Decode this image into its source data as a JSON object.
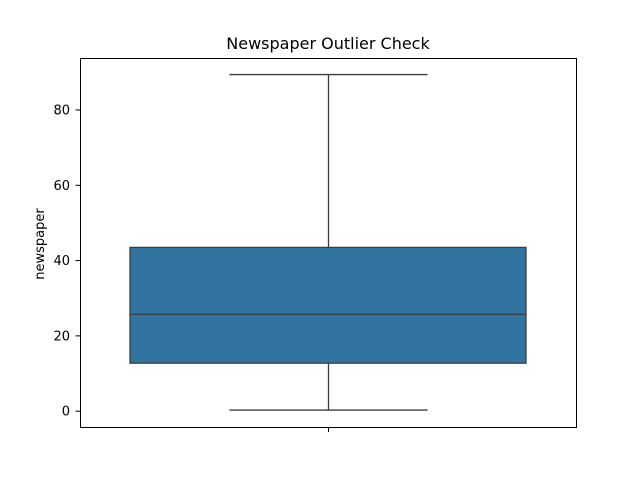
{
  "chart_data": {
    "type": "box",
    "title": "Newspaper Outlier Check",
    "xlabel": "",
    "ylabel": "newspaper",
    "ylim": [
      -4.2,
      93.8
    ],
    "yticks": [
      0,
      20,
      40,
      60,
      80
    ],
    "grid": false,
    "box": {
      "min": 0.3,
      "q1": 12.75,
      "median": 25.75,
      "q3": 43.5,
      "max": 89.4
    },
    "colors": {
      "box_fill": "#3274a1",
      "line": "#3d3d3d",
      "axes": "#000000"
    }
  }
}
